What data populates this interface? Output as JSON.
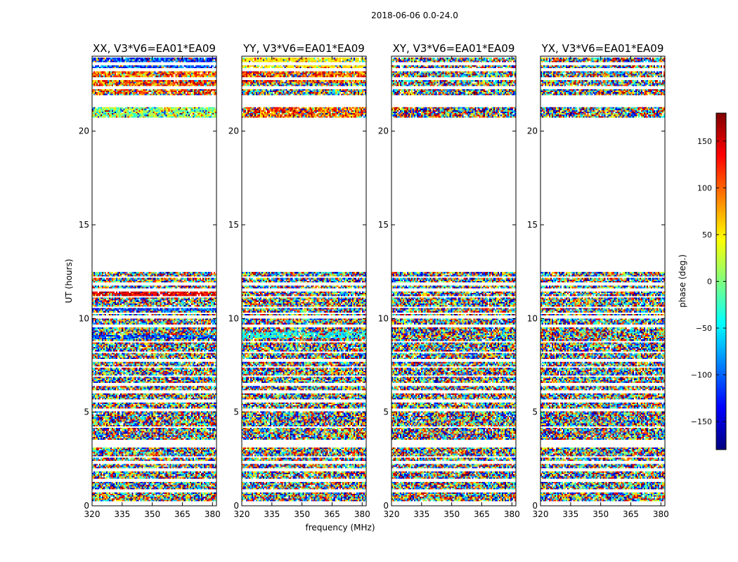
{
  "suptitle": "2018-06-06 0.0-24.0",
  "xlabel": "frequency (MHz)",
  "ylabel": "UT (hours)",
  "colorbar": {
    "label": "phase (deg.)",
    "range": [
      -180,
      180
    ],
    "ticks": [
      -150,
      -100,
      -50,
      0,
      50,
      100,
      150
    ],
    "colormap": "jet",
    "colors": [
      "#00007f",
      "#0000ff",
      "#007fff",
      "#00ffff",
      "#7fff7f",
      "#ffff00",
      "#ff7f00",
      "#ff0000",
      "#7f0000"
    ]
  },
  "chart_data": {
    "type": "heatmap",
    "x_range": [
      320,
      382
    ],
    "y_range": [
      0,
      24
    ],
    "x_ticks": [
      320,
      335,
      350,
      365,
      380
    ],
    "y_ticks": [
      0,
      5,
      10,
      15,
      20
    ],
    "panels": [
      {
        "title": "XX, V3*V6=EA01*EA09",
        "structure": [
          {
            "from": 23.2,
            "to": 23.9,
            "mode": "blue"
          },
          {
            "from": 22.0,
            "to": 23.2,
            "mode": "warm"
          },
          {
            "from": 20.7,
            "to": 21.3,
            "mode": "green"
          },
          {
            "from": 11.2,
            "to": 11.5,
            "mode": "red"
          },
          {
            "from": 10.4,
            "to": 10.6,
            "mode": "blue"
          },
          {
            "from": 8.9,
            "to": 9.1,
            "mode": "blue"
          }
        ]
      },
      {
        "title": "YY, V3*V6=EA01*EA09",
        "structure": [
          {
            "from": 23.4,
            "to": 23.9,
            "mode": "yellow"
          },
          {
            "from": 22.6,
            "to": 23.4,
            "mode": "warm"
          },
          {
            "from": 20.7,
            "to": 21.3,
            "mode": "warm"
          },
          {
            "from": 9.0,
            "to": 9.3,
            "mode": "cyan"
          }
        ]
      },
      {
        "title": "XY, V3*V6=EA01*EA09",
        "structure": []
      },
      {
        "title": "YX, V3*V6=EA01*EA09",
        "structure": []
      }
    ],
    "data_bands": [
      [
        0.2,
        1.3
      ],
      [
        1.45,
        3.15
      ],
      [
        3.5,
        6.9
      ],
      [
        7.0,
        8.7
      ],
      [
        8.8,
        10.2
      ],
      [
        10.3,
        11.1
      ],
      [
        11.2,
        12.5
      ],
      [
        20.7,
        21.3
      ],
      [
        21.95,
        23.95
      ]
    ],
    "gap_lines": [
      0.8,
      1.9,
      2.3,
      2.6,
      4.2,
      5.15,
      5.6,
      6.05,
      6.5,
      7.4,
      7.75,
      8.2,
      9.6,
      10.05,
      10.6,
      11.5,
      11.85,
      12.2,
      22.3,
      22.8,
      23.3,
      23.6
    ]
  }
}
